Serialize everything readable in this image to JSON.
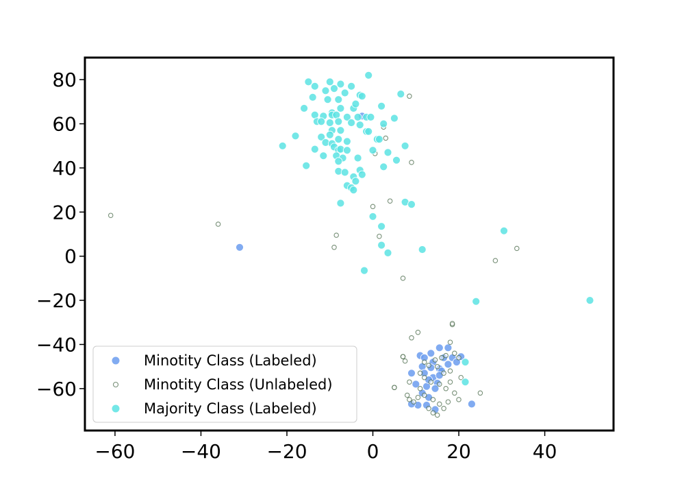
{
  "chart_data": {
    "type": "scatter",
    "xlim": [
      -67,
      56
    ],
    "ylim": [
      -79,
      90
    ],
    "x_ticks": [
      -60,
      -40,
      -20,
      0,
      20,
      40
    ],
    "y_ticks": [
      -60,
      -40,
      -20,
      0,
      20,
      40,
      60,
      80
    ],
    "x_tick_labels": [
      "−60",
      "−40",
      "−20",
      "0",
      "20",
      "40"
    ],
    "y_tick_labels": [
      "−60",
      "−40",
      "−20",
      "0",
      "20",
      "40",
      "60",
      "80"
    ],
    "grid": false,
    "legend_position": "lower-left",
    "series": [
      {
        "name": "Minotity Class (Labeled)",
        "color": "#6b9cee",
        "marker": "filled-circle",
        "points": [
          [
            -31,
            4
          ],
          [
            -2.5,
            63.5
          ],
          [
            11,
            -45
          ],
          [
            13.5,
            -44
          ],
          [
            15.5,
            -41.5
          ],
          [
            17.5,
            -41.5
          ],
          [
            12,
            -46
          ],
          [
            14,
            -48
          ],
          [
            16.5,
            -46
          ],
          [
            18.5,
            -46
          ],
          [
            20.5,
            -45.5
          ],
          [
            11.5,
            -50
          ],
          [
            13.5,
            -50.5
          ],
          [
            15.5,
            -51
          ],
          [
            17.5,
            -49
          ],
          [
            19.5,
            -48
          ],
          [
            12,
            -53
          ],
          [
            14,
            -55
          ],
          [
            15,
            -57.5
          ],
          [
            14.5,
            -60
          ],
          [
            12.5,
            -59
          ],
          [
            10,
            -58
          ],
          [
            9,
            -53
          ],
          [
            11.5,
            -62
          ],
          [
            13,
            -64
          ],
          [
            10.5,
            -67.5
          ],
          [
            12.5,
            -67.5
          ],
          [
            14.5,
            -69.5
          ],
          [
            9,
            -67
          ],
          [
            23,
            -67
          ],
          [
            16,
            -52
          ],
          [
            13,
            -56
          ],
          [
            15.5,
            -54
          ]
        ]
      },
      {
        "name": "Minotity Class (Unlabeled)",
        "color": "#a9c8a9",
        "marker": "hollow-circle",
        "points": [
          [
            -61,
            18.5
          ],
          [
            -36,
            14.5
          ],
          [
            -8.5,
            9.5
          ],
          [
            -9,
            4
          ],
          [
            0,
            22.5
          ],
          [
            4,
            25
          ],
          [
            1.5,
            9
          ],
          [
            7,
            -10
          ],
          [
            28.5,
            -2
          ],
          [
            33.5,
            3.5
          ],
          [
            2.5,
            58.5
          ],
          [
            3,
            53.5
          ],
          [
            0.5,
            46.5
          ],
          [
            9,
            42.5
          ],
          [
            8.5,
            72.5
          ],
          [
            10.5,
            -34.5
          ],
          [
            9,
            -37
          ],
          [
            18.5,
            -31
          ],
          [
            18.5,
            -30.5
          ],
          [
            18,
            -39
          ],
          [
            7,
            -45.5
          ],
          [
            7,
            -45.5
          ],
          [
            7.5,
            -47.5
          ],
          [
            5,
            -59.5
          ],
          [
            5,
            -59.5
          ],
          [
            8,
            -63
          ],
          [
            8.5,
            -65
          ],
          [
            9.5,
            -66
          ],
          [
            25,
            -62
          ],
          [
            12,
            -48
          ],
          [
            13,
            -49.5
          ],
          [
            14.5,
            -47
          ],
          [
            16,
            -46
          ],
          [
            17,
            -45
          ],
          [
            19,
            -44
          ],
          [
            20,
            -46
          ],
          [
            15,
            -50
          ],
          [
            16.5,
            -53
          ],
          [
            18,
            -52
          ],
          [
            12,
            -55
          ],
          [
            13.5,
            -57
          ],
          [
            15.5,
            -58
          ],
          [
            17,
            -60
          ],
          [
            19,
            -62
          ],
          [
            11,
            -60
          ],
          [
            12,
            -63
          ],
          [
            14,
            -65
          ],
          [
            15.5,
            -67
          ],
          [
            16.5,
            -69
          ],
          [
            14,
            -71
          ],
          [
            15,
            -72
          ],
          [
            17.5,
            -66
          ],
          [
            20,
            -65
          ],
          [
            18,
            -57
          ],
          [
            20.5,
            -55
          ],
          [
            10.5,
            -64
          ],
          [
            13,
            -69
          ],
          [
            11,
            -53
          ],
          [
            8.5,
            -57
          ]
        ]
      },
      {
        "name": "Majority Class (Labeled)",
        "color": "#5ce3e3",
        "marker": "filled-circle",
        "points": [
          [
            -1,
            82
          ],
          [
            -15,
            79
          ],
          [
            -13.5,
            77
          ],
          [
            -10,
            79
          ],
          [
            -7.5,
            78
          ],
          [
            -5,
            77
          ],
          [
            -11,
            75
          ],
          [
            -9,
            76
          ],
          [
            -6.5,
            74
          ],
          [
            -3,
            73
          ],
          [
            -14,
            72
          ],
          [
            -8,
            71
          ],
          [
            -10.5,
            71
          ],
          [
            -2.5,
            72.5
          ],
          [
            6.5,
            73.5
          ],
          [
            -16,
            67
          ],
          [
            -9.5,
            65
          ],
          [
            -7.5,
            67
          ],
          [
            -4.5,
            67
          ],
          [
            -4,
            69
          ],
          [
            -13.5,
            64
          ],
          [
            -11.5,
            63.5
          ],
          [
            -9.5,
            64
          ],
          [
            -8.5,
            64
          ],
          [
            -6,
            63
          ],
          [
            -3.5,
            63
          ],
          [
            -1.5,
            63
          ],
          [
            -0.5,
            63
          ],
          [
            2,
            68
          ],
          [
            5,
            62.5
          ],
          [
            -13,
            61
          ],
          [
            -12,
            61
          ],
          [
            -10,
            60.5
          ],
          [
            -8,
            61
          ],
          [
            -5,
            60.5
          ],
          [
            -3,
            59.5
          ],
          [
            2.5,
            60
          ],
          [
            -1.5,
            56.5
          ],
          [
            -1,
            56.5
          ],
          [
            -9.5,
            57
          ],
          [
            -7.5,
            57
          ],
          [
            -18,
            54.5
          ],
          [
            -12,
            54
          ],
          [
            -10,
            55
          ],
          [
            -8,
            53
          ],
          [
            1,
            53
          ],
          [
            1.5,
            53
          ],
          [
            -11,
            51.5
          ],
          [
            -9.5,
            51
          ],
          [
            -6,
            52
          ],
          [
            -13.5,
            48.5
          ],
          [
            -9,
            49.5
          ],
          [
            -8,
            48
          ],
          [
            -7.5,
            48.5
          ],
          [
            -6,
            48
          ],
          [
            0,
            48
          ],
          [
            3.5,
            47
          ],
          [
            7.5,
            50
          ],
          [
            -21,
            50
          ],
          [
            -11.5,
            45.5
          ],
          [
            -8.5,
            45.5
          ],
          [
            -7,
            44.5
          ],
          [
            -3.5,
            44.5
          ],
          [
            -8,
            43
          ],
          [
            -15.5,
            41
          ],
          [
            2.5,
            40.5
          ],
          [
            5.5,
            43.5
          ],
          [
            -8,
            38.5
          ],
          [
            -6.5,
            38
          ],
          [
            -3,
            39
          ],
          [
            -2.5,
            37
          ],
          [
            -4.5,
            36
          ],
          [
            -4,
            34
          ],
          [
            -6,
            32
          ],
          [
            -5,
            31
          ],
          [
            -4.5,
            30
          ],
          [
            -7.5,
            24
          ],
          [
            7.5,
            24.5
          ],
          [
            9,
            23.5
          ],
          [
            0,
            18
          ],
          [
            2,
            13.5
          ],
          [
            30.5,
            11.5
          ],
          [
            2,
            5
          ],
          [
            11.5,
            3
          ],
          [
            3.5,
            1.5
          ],
          [
            -2,
            -6.5
          ],
          [
            24,
            -20.5
          ],
          [
            50.5,
            -20
          ],
          [
            21.5,
            -48
          ],
          [
            21.5,
            -57
          ]
        ]
      }
    ]
  }
}
